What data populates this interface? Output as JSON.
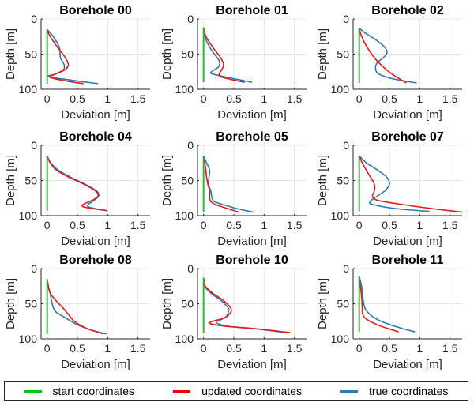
{
  "chart_data": {
    "type": "line",
    "layout": "3x3 small multiples",
    "xlabel": "Deviation [m]",
    "ylabel": "Depth [m]",
    "xlim": [
      -0.1,
      1.7
    ],
    "ylim": [
      100,
      0
    ],
    "xticks": [
      0,
      0.5,
      1,
      1.5
    ],
    "xtick_labels": [
      "0",
      "0.5",
      "1",
      "1.5"
    ],
    "yticks": [
      0,
      50,
      100
    ],
    "ytick_labels": [
      "0",
      "50",
      "100"
    ],
    "grid": true,
    "legend": {
      "placement": "bottom",
      "entries": [
        {
          "name": "start coordinates",
          "color": "#00c000"
        },
        {
          "name": "updated coordinates",
          "color": "#e8000b"
        },
        {
          "name": "true coordinates",
          "color": "#1f77b4"
        }
      ]
    },
    "colors": {
      "start": "#33b233",
      "updated": "#e31a1c",
      "true": "#2f78b6"
    },
    "panels": [
      {
        "title": "Borehole 00",
        "start": {
          "depth": [
            15,
            92
          ],
          "deviation": [
            0,
            0
          ]
        },
        "updated": {
          "depth": [
            15,
            25,
            40,
            55,
            65,
            72,
            78,
            83,
            88,
            92
          ],
          "deviation": [
            0,
            0.05,
            0.17,
            0.3,
            0.35,
            0.3,
            0.15,
            0.05,
            0.3,
            0.6
          ]
        },
        "true": {
          "depth": [
            15,
            25,
            40,
            55,
            65,
            72,
            78,
            82,
            87,
            92
          ],
          "deviation": [
            0,
            0.1,
            0.2,
            0.22,
            0.28,
            0.27,
            0.15,
            0.02,
            0.4,
            0.84
          ]
        }
      },
      {
        "title": "Borehole 01",
        "start": {
          "depth": [
            12,
            90
          ],
          "deviation": [
            0,
            0
          ]
        },
        "updated": {
          "depth": [
            12,
            25,
            40,
            55,
            65,
            72,
            78,
            82,
            86,
            90
          ],
          "deviation": [
            0,
            0.04,
            0.15,
            0.28,
            0.33,
            0.3,
            0.26,
            0.28,
            0.45,
            0.68
          ]
        },
        "true": {
          "depth": [
            12,
            25,
            40,
            50,
            60,
            68,
            74,
            78,
            84,
            90
          ],
          "deviation": [
            0,
            0.02,
            0.1,
            0.18,
            0.26,
            0.25,
            0.15,
            0.14,
            0.45,
            0.8
          ]
        }
      },
      {
        "title": "Borehole 02",
        "start": {
          "depth": [
            13,
            91
          ],
          "deviation": [
            0,
            0
          ]
        },
        "updated": {
          "depth": [
            13,
            25,
            40,
            55,
            70,
            80,
            91
          ],
          "deviation": [
            0,
            0.04,
            0.13,
            0.25,
            0.42,
            0.57,
            0.78
          ]
        },
        "true": {
          "depth": [
            13,
            20,
            30,
            40,
            48,
            55,
            62,
            70,
            78,
            85,
            91
          ],
          "deviation": [
            0,
            0.1,
            0.28,
            0.42,
            0.46,
            0.4,
            0.3,
            0.27,
            0.32,
            0.55,
            0.95
          ]
        }
      },
      {
        "title": "Borehole 04",
        "start": {
          "depth": [
            15,
            93
          ],
          "deviation": [
            0,
            0
          ]
        },
        "updated": {
          "depth": [
            15,
            25,
            35,
            45,
            55,
            65,
            72,
            78,
            84,
            88,
            93
          ],
          "deviation": [
            0,
            0.05,
            0.15,
            0.35,
            0.6,
            0.8,
            0.84,
            0.75,
            0.6,
            0.62,
            1.0
          ]
        },
        "true": {
          "depth": [
            15,
            25,
            35,
            45,
            55,
            65,
            72,
            78,
            84,
            88,
            93
          ],
          "deviation": [
            0,
            0.06,
            0.18,
            0.38,
            0.62,
            0.82,
            0.85,
            0.78,
            0.68,
            0.7,
            0.98
          ]
        }
      },
      {
        "title": "Borehole 05",
        "start": {
          "depth": [
            15,
            95
          ],
          "deviation": [
            0,
            0
          ]
        },
        "updated": {
          "depth": [
            15,
            30,
            45,
            55,
            65,
            75,
            80,
            85,
            90,
            95
          ],
          "deviation": [
            0,
            0.03,
            0.05,
            0.07,
            0.1,
            0.1,
            0.12,
            0.22,
            0.4,
            0.58
          ]
        },
        "true": {
          "depth": [
            15,
            25,
            35,
            45,
            55,
            65,
            75,
            80,
            85,
            90,
            95
          ],
          "deviation": [
            0,
            0.05,
            0.1,
            0.09,
            0.08,
            0.12,
            0.14,
            0.18,
            0.35,
            0.55,
            0.82
          ]
        }
      },
      {
        "title": "Borehole 07",
        "start": {
          "depth": [
            15,
            94
          ],
          "deviation": [
            0,
            0
          ]
        },
        "updated": {
          "depth": [
            15,
            25,
            40,
            55,
            65,
            72,
            78,
            84,
            90,
            95
          ],
          "deviation": [
            0,
            0.05,
            0.15,
            0.25,
            0.25,
            0.22,
            0.3,
            0.7,
            1.2,
            1.7
          ]
        },
        "true": {
          "depth": [
            15,
            25,
            35,
            45,
            55,
            65,
            75,
            80,
            84,
            90,
            94
          ],
          "deviation": [
            0,
            0.12,
            0.3,
            0.45,
            0.5,
            0.42,
            0.25,
            0.18,
            0.22,
            0.6,
            1.16
          ]
        }
      },
      {
        "title": "Borehole 08",
        "start": {
          "depth": [
            15,
            93
          ],
          "deviation": [
            0,
            0
          ]
        },
        "updated": {
          "depth": [
            15,
            25,
            35,
            45,
            55,
            65,
            75,
            85,
            93
          ],
          "deviation": [
            0,
            0.02,
            0.05,
            0.14,
            0.25,
            0.35,
            0.45,
            0.65,
            0.93
          ]
        },
        "true": {
          "depth": [
            15,
            25,
            35,
            45,
            55,
            62,
            70,
            80,
            88,
            93
          ],
          "deviation": [
            0,
            0.02,
            0.05,
            0.07,
            0.1,
            0.15,
            0.3,
            0.5,
            0.75,
            0.98
          ]
        }
      },
      {
        "title": "Borehole 10",
        "start": {
          "depth": [
            13,
            91
          ],
          "deviation": [
            0,
            0
          ]
        },
        "updated": {
          "depth": [
            13,
            25,
            35,
            45,
            55,
            62,
            70,
            75,
            78,
            82,
            86,
            91
          ],
          "deviation": [
            0,
            0.03,
            0.15,
            0.32,
            0.44,
            0.45,
            0.35,
            0.15,
            0.1,
            0.35,
            0.9,
            1.43
          ]
        },
        "true": {
          "depth": [
            13,
            25,
            35,
            45,
            55,
            62,
            70,
            75,
            78,
            82,
            86,
            91
          ],
          "deviation": [
            0,
            0.02,
            0.12,
            0.28,
            0.4,
            0.41,
            0.35,
            0.22,
            0.23,
            0.4,
            0.9,
            1.35
          ]
        }
      },
      {
        "title": "Borehole 11",
        "start": {
          "depth": [
            11,
            90
          ],
          "deviation": [
            0,
            0
          ]
        },
        "updated": {
          "depth": [
            11,
            25,
            40,
            55,
            65,
            72,
            80,
            86,
            90
          ],
          "deviation": [
            0,
            0.02,
            0.04,
            0.05,
            0.06,
            0.12,
            0.3,
            0.5,
            0.65
          ]
        },
        "true": {
          "depth": [
            11,
            25,
            40,
            52,
            60,
            70,
            78,
            85,
            90
          ],
          "deviation": [
            0,
            0.04,
            0.06,
            0.08,
            0.12,
            0.25,
            0.45,
            0.7,
            0.92
          ]
        }
      }
    ]
  }
}
